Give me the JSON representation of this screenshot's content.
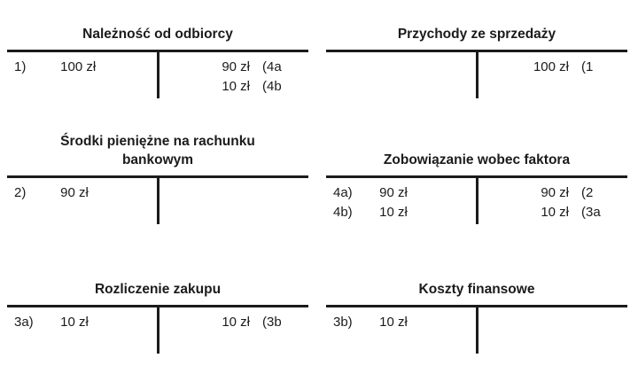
{
  "colors": {
    "ink": "#1b1b1b",
    "background": "#ffffff"
  },
  "accounts": [
    {
      "title": "Należność od odbiorcy",
      "debit": [
        {
          "ref": "1)",
          "amount": "100 zł"
        }
      ],
      "credit": [
        {
          "amount": "90 zł",
          "ref": "(4a"
        },
        {
          "amount": "10 zł",
          "ref": "(4b"
        }
      ]
    },
    {
      "title": "Przychody ze sprzedaży",
      "debit": [],
      "credit": [
        {
          "amount": "100 zł",
          "ref": "(1"
        }
      ]
    },
    {
      "title": "Środki pieniężne na rachunku",
      "title_line2": "bankowym",
      "debit": [
        {
          "ref": "2)",
          "amount": "90 zł"
        }
      ],
      "credit": []
    },
    {
      "title": "Zobowiązanie wobec faktora",
      "debit": [
        {
          "ref": "4a)",
          "amount": "90 zł"
        },
        {
          "ref": "4b)",
          "amount": "10 zł"
        }
      ],
      "credit": [
        {
          "amount": "90 zł",
          "ref": "(2"
        },
        {
          "amount": "10 zł",
          "ref": "(3a"
        }
      ]
    },
    {
      "title": "Rozliczenie zakupu",
      "debit": [
        {
          "ref": "3a)",
          "amount": "10 zł"
        }
      ],
      "credit": [
        {
          "amount": "10 zł",
          "ref": "(3b"
        }
      ]
    },
    {
      "title": "Koszty finansowe",
      "debit": [
        {
          "ref": "3b)",
          "amount": "10 zł"
        }
      ],
      "credit": []
    }
  ]
}
